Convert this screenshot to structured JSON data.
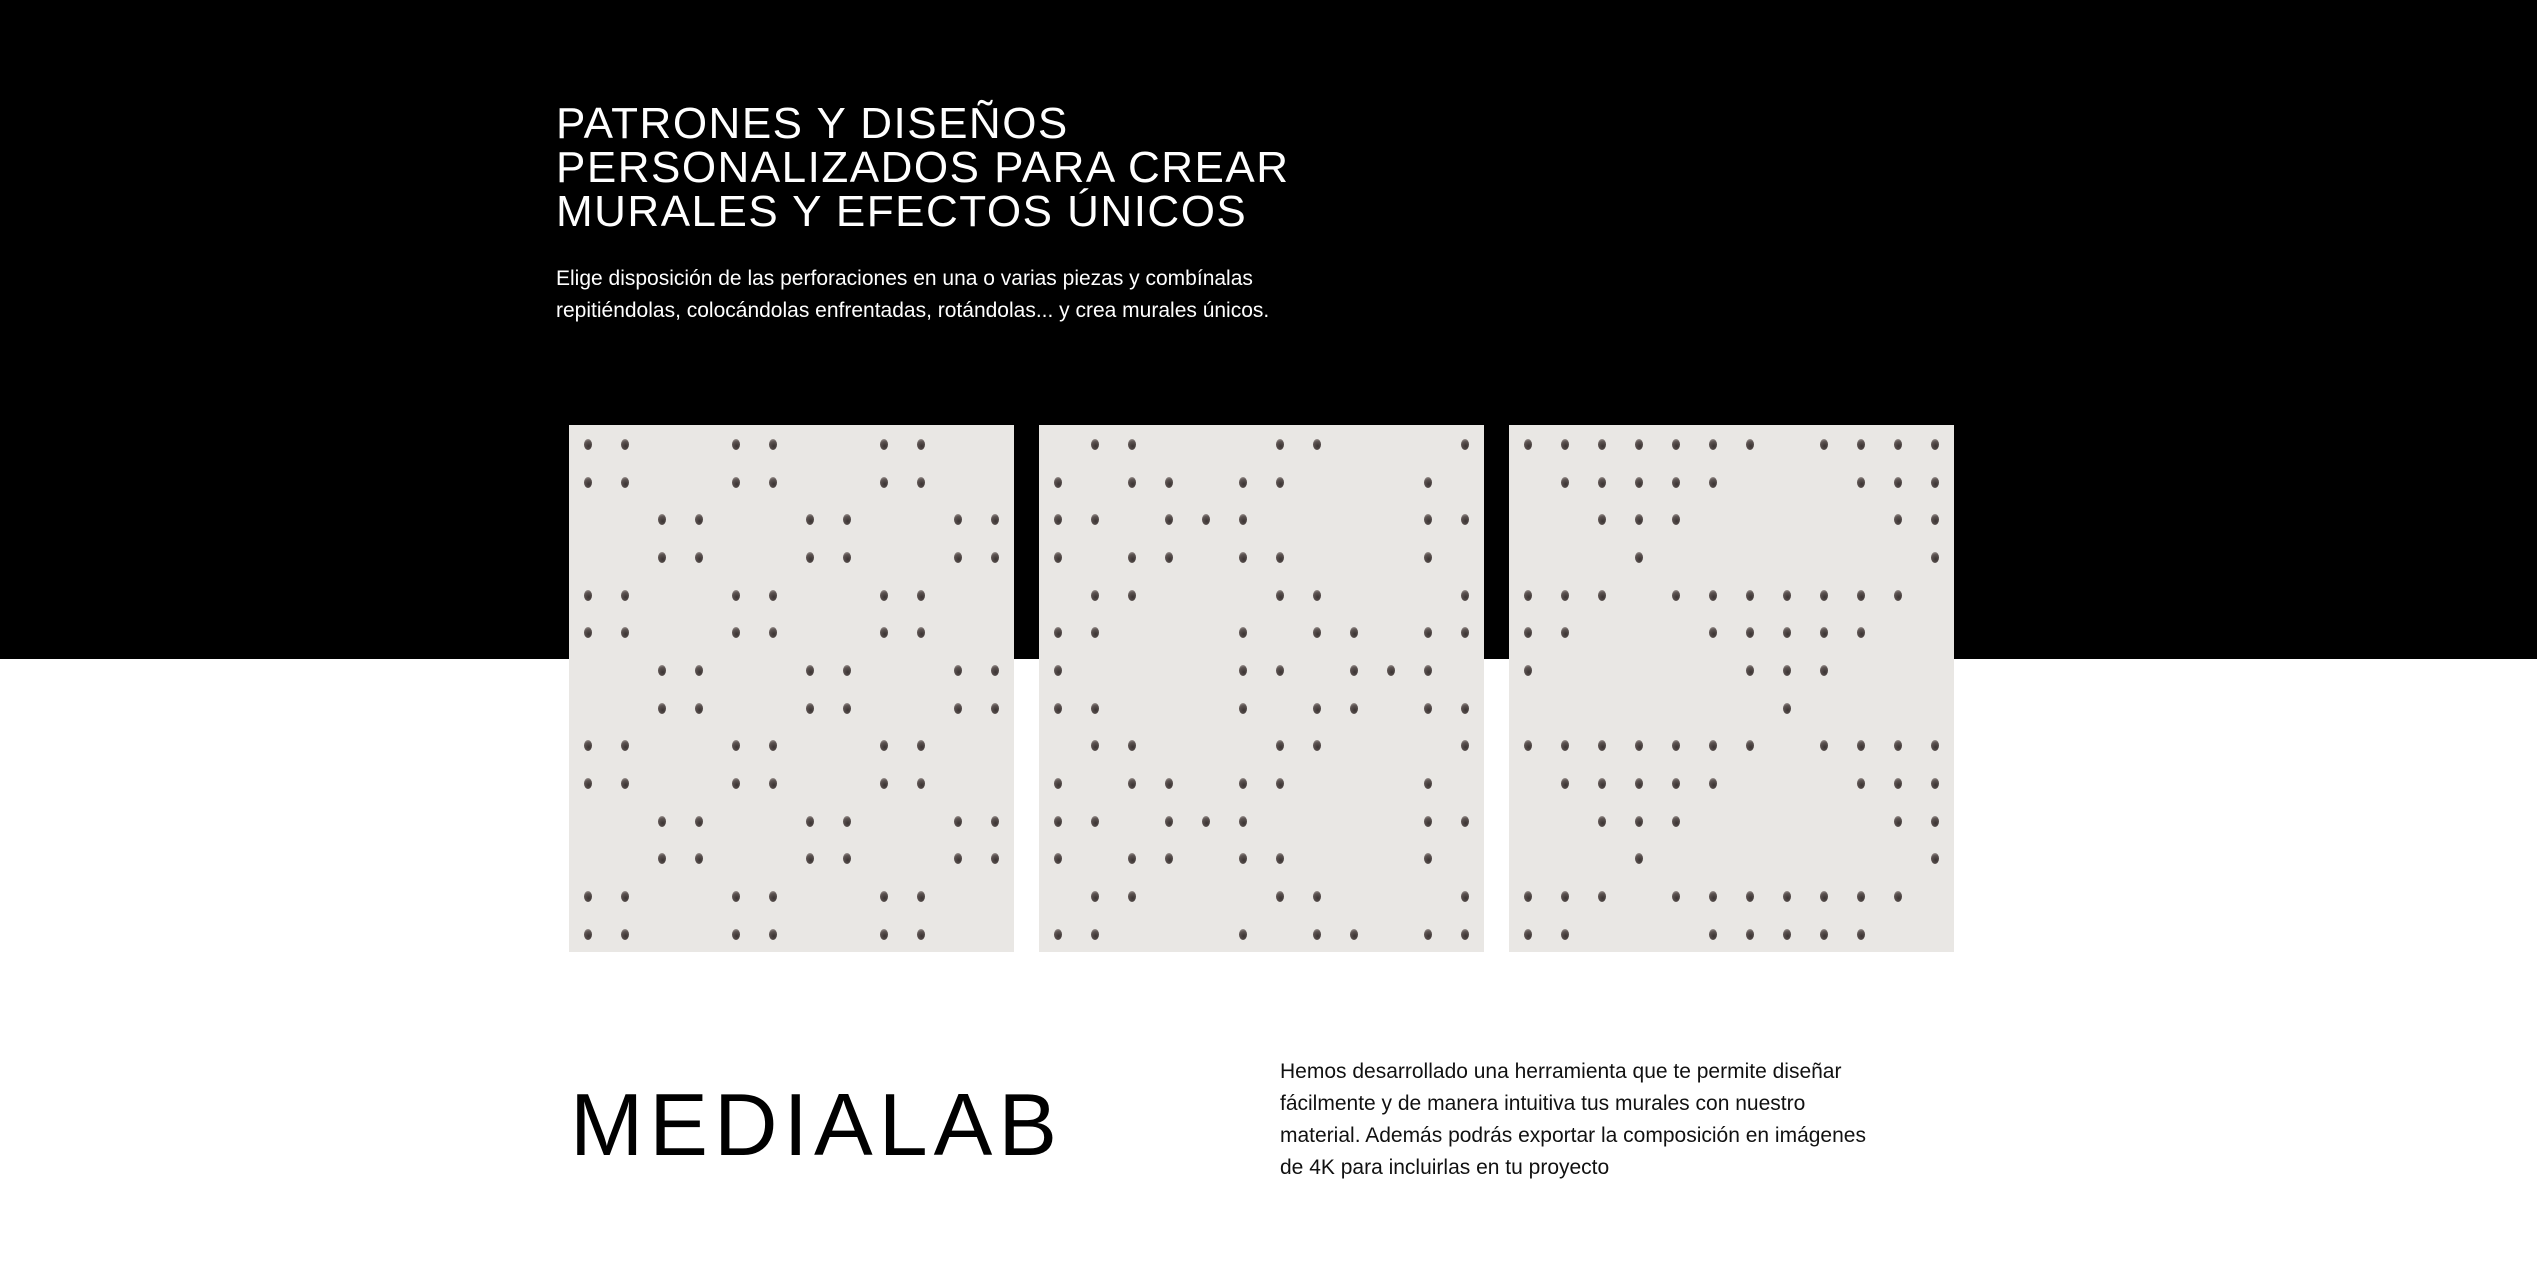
{
  "hero": {
    "title_lines": [
      "PATRONES Y DISEÑOS",
      "PERSONALIZADOS PARA CREAR",
      "MURALES Y EFECTOS ÚNICOS"
    ],
    "intro_lines": [
      "Elige disposición de las perforaciones en una o varias piezas y combínalas",
      "repitiéndolas, colocándolas enfrentadas, rotándolas... y crea murales únicos."
    ]
  },
  "panels": [
    {
      "pattern": [
        "110011001100",
        "110011001100",
        "001100110011",
        "001100110011",
        "110011001100",
        "110011001100",
        "001100110011",
        "001100110011",
        "110011001100",
        "110011001100",
        "001100110011",
        "001100110011",
        "110011001100",
        "110011001100"
      ]
    },
    {
      "pattern": [
        "011000110001",
        "101101100010",
        "110111000011",
        "101101100010",
        "011000110001",
        "110001011011",
        "100001101110",
        "110001011011",
        "011000110001",
        "101101100010",
        "110111000011",
        "101101100010",
        "011000110001",
        "110001011011"
      ]
    },
    {
      "pattern": [
        "111111101111",
        "011111000111",
        "001110000011",
        "000100000001",
        "111011111110",
        "110001111100",
        "100000111000",
        "000000010000",
        "111111101111",
        "011111000111",
        "001110000011",
        "000100000001",
        "111011111110",
        "110001111100"
      ]
    }
  ],
  "medialab": {
    "title": "MEDIALAB",
    "description_lines": [
      "Hemos desarrollado una herramienta que te permite diseñar",
      "fácilmente y de manera intuitiva tus murales con nuestro",
      "material. Además podrás exportar la composición en imágenes",
      "de 4K para incluirlas en tu proyecto"
    ]
  },
  "colors": {
    "band": "#000000",
    "panel": "#e9e7e4",
    "text_dark": "#111111"
  }
}
